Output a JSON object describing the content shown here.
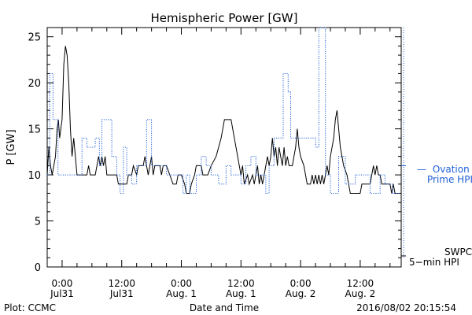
{
  "chart_data": {
    "type": "line",
    "title": "Hemispheric Power [GW]",
    "ylabel": "P [GW]",
    "xlabel": "Date and Time",
    "ylim": [
      0,
      26
    ],
    "xlim": [
      "2016-07-30 21:00",
      "2016-08-02 20:15"
    ],
    "grid": false,
    "y_ticks": [
      0,
      5,
      10,
      15,
      20,
      25
    ],
    "x_ticks": [
      {
        "t": "2016-07-31 00:00",
        "line1": "0:00",
        "line2": "Jul31"
      },
      {
        "t": "2016-07-31 12:00",
        "line1": "12:00",
        "line2": "Jul31"
      },
      {
        "t": "2016-08-01 00:00",
        "line1": "0:00",
        "line2": "Aug. 1"
      },
      {
        "t": "2016-08-01 12:00",
        "line1": "12:00",
        "line2": "Aug. 1"
      },
      {
        "t": "2016-08-02 00:00",
        "line1": "0:00",
        "line2": "Aug. 2"
      },
      {
        "t": "2016-08-02 12:00",
        "line1": "12:00",
        "line2": "Aug. 2"
      }
    ],
    "series": [
      {
        "name": "SWPC 5-min HPI",
        "color": "#000000",
        "style": "solid",
        "points": [
          [
            "2016-07-30 21:00",
            10
          ],
          [
            "2016-07-30 21:20",
            13
          ],
          [
            "2016-07-30 21:40",
            11
          ],
          [
            "2016-07-30 22:00",
            10
          ],
          [
            "2016-07-30 22:40",
            12
          ],
          [
            "2016-07-30 23:00",
            15
          ],
          [
            "2016-07-30 23:15",
            16
          ],
          [
            "2016-07-30 23:30",
            14
          ],
          [
            "2016-07-31 00:00",
            16
          ],
          [
            "2016-07-31 00:20",
            22
          ],
          [
            "2016-07-31 00:40",
            24
          ],
          [
            "2016-07-31 01:00",
            23
          ],
          [
            "2016-07-31 01:20",
            20
          ],
          [
            "2016-07-31 01:40",
            15
          ],
          [
            "2016-07-31 02:00",
            12
          ],
          [
            "2016-07-31 02:20",
            14
          ],
          [
            "2016-07-31 02:40",
            12
          ],
          [
            "2016-07-31 03:00",
            10
          ],
          [
            "2016-07-31 05:00",
            10
          ],
          [
            "2016-07-31 05:20",
            11
          ],
          [
            "2016-07-31 05:40",
            10
          ],
          [
            "2016-07-31 06:40",
            10
          ],
          [
            "2016-07-31 07:00",
            11
          ],
          [
            "2016-07-31 07:20",
            12
          ],
          [
            "2016-07-31 07:40",
            11
          ],
          [
            "2016-07-31 08:00",
            12
          ],
          [
            "2016-07-31 08:20",
            11
          ],
          [
            "2016-07-31 08:40",
            12
          ],
          [
            "2016-07-31 09:00",
            10
          ],
          [
            "2016-07-31 11:00",
            10
          ],
          [
            "2016-07-31 11:20",
            9
          ],
          [
            "2016-07-31 13:00",
            9
          ],
          [
            "2016-07-31 13:20",
            10
          ],
          [
            "2016-07-31 14:00",
            10
          ],
          [
            "2016-07-31 14:20",
            11
          ],
          [
            "2016-07-31 15:00",
            10
          ],
          [
            "2016-07-31 15:20",
            11
          ],
          [
            "2016-07-31 16:20",
            11
          ],
          [
            "2016-07-31 16:40",
            12
          ],
          [
            "2016-07-31 17:00",
            11
          ],
          [
            "2016-07-31 17:20",
            10
          ],
          [
            "2016-07-31 17:40",
            11
          ],
          [
            "2016-07-31 18:00",
            12
          ],
          [
            "2016-07-31 18:20",
            10
          ],
          [
            "2016-07-31 18:40",
            11
          ],
          [
            "2016-07-31 19:40",
            11
          ],
          [
            "2016-07-31 20:00",
            10
          ],
          [
            "2016-07-31 20:20",
            11
          ],
          [
            "2016-07-31 21:00",
            11
          ],
          [
            "2016-07-31 21:40",
            10
          ],
          [
            "2016-07-31 22:20",
            9
          ],
          [
            "2016-07-31 23:00",
            9
          ],
          [
            "2016-07-31 23:20",
            10
          ],
          [
            "2016-08-01 00:00",
            10
          ],
          [
            "2016-08-01 00:40",
            9
          ],
          [
            "2016-08-01 01:00",
            8
          ],
          [
            "2016-08-01 01:40",
            8
          ],
          [
            "2016-08-01 02:00",
            9
          ],
          [
            "2016-08-01 02:40",
            10
          ],
          [
            "2016-08-01 03:00",
            11
          ],
          [
            "2016-08-01 04:00",
            11
          ],
          [
            "2016-08-01 04:20",
            10
          ],
          [
            "2016-08-01 05:20",
            10
          ],
          [
            "2016-08-01 06:00",
            11
          ],
          [
            "2016-08-01 07:00",
            12
          ],
          [
            "2016-08-01 08:00",
            14
          ],
          [
            "2016-08-01 08:40",
            16
          ],
          [
            "2016-08-01 10:00",
            16
          ],
          [
            "2016-08-01 10:40",
            14
          ],
          [
            "2016-08-01 11:20",
            12
          ],
          [
            "2016-08-01 12:00",
            10
          ],
          [
            "2016-08-01 12:20",
            11
          ],
          [
            "2016-08-01 12:40",
            9
          ],
          [
            "2016-08-01 13:20",
            10
          ],
          [
            "2016-08-01 13:40",
            9
          ],
          [
            "2016-08-01 14:20",
            10
          ],
          [
            "2016-08-01 14:40",
            9
          ],
          [
            "2016-08-01 15:00",
            10
          ],
          [
            "2016-08-01 15:20",
            11
          ],
          [
            "2016-08-01 15:40",
            9
          ],
          [
            "2016-08-01 16:00",
            10
          ],
          [
            "2016-08-01 16:20",
            9
          ],
          [
            "2016-08-01 16:40",
            10
          ],
          [
            "2016-08-01 17:00",
            11
          ],
          [
            "2016-08-01 17:20",
            12
          ],
          [
            "2016-08-01 17:40",
            11
          ],
          [
            "2016-08-01 18:00",
            12
          ],
          [
            "2016-08-01 18:20",
            14
          ],
          [
            "2016-08-01 18:40",
            12
          ],
          [
            "2016-08-01 19:00",
            13
          ],
          [
            "2016-08-01 19:20",
            11
          ],
          [
            "2016-08-01 19:40",
            13
          ],
          [
            "2016-08-01 20:00",
            12
          ],
          [
            "2016-08-01 20:20",
            11
          ],
          [
            "2016-08-01 20:40",
            13
          ],
          [
            "2016-08-01 21:00",
            11
          ],
          [
            "2016-08-01 21:20",
            12
          ],
          [
            "2016-08-01 21:40",
            11
          ],
          [
            "2016-08-01 22:20",
            11
          ],
          [
            "2016-08-01 23:00",
            13
          ],
          [
            "2016-08-01 23:20",
            15
          ],
          [
            "2016-08-01 23:40",
            13
          ],
          [
            "2016-08-02 00:00",
            12
          ],
          [
            "2016-08-02 00:40",
            11
          ],
          [
            "2016-08-02 01:00",
            10
          ],
          [
            "2016-08-02 01:20",
            9
          ],
          [
            "2016-08-02 02:00",
            9
          ],
          [
            "2016-08-02 02:20",
            10
          ],
          [
            "2016-08-02 02:40",
            9
          ],
          [
            "2016-08-02 03:00",
            10
          ],
          [
            "2016-08-02 03:20",
            9
          ],
          [
            "2016-08-02 03:40",
            10
          ],
          [
            "2016-08-02 04:00",
            9
          ],
          [
            "2016-08-02 04:20",
            10
          ],
          [
            "2016-08-02 04:40",
            9
          ],
          [
            "2016-08-02 05:00",
            10
          ],
          [
            "2016-08-02 05:20",
            11
          ],
          [
            "2016-08-02 05:40",
            10
          ],
          [
            "2016-08-02 06:00",
            12
          ],
          [
            "2016-08-02 06:40",
            14
          ],
          [
            "2016-08-02 07:00",
            16
          ],
          [
            "2016-08-02 07:20",
            17
          ],
          [
            "2016-08-02 07:40",
            15
          ],
          [
            "2016-08-02 08:00",
            13
          ],
          [
            "2016-08-02 08:40",
            11
          ],
          [
            "2016-08-02 09:20",
            10
          ],
          [
            "2016-08-02 09:40",
            9
          ],
          [
            "2016-08-02 10:00",
            8
          ],
          [
            "2016-08-02 12:00",
            8
          ],
          [
            "2016-08-02 12:20",
            9
          ],
          [
            "2016-08-02 14:00",
            9
          ],
          [
            "2016-08-02 14:20",
            10
          ],
          [
            "2016-08-02 14:40",
            11
          ],
          [
            "2016-08-02 15:00",
            10
          ],
          [
            "2016-08-02 15:20",
            11
          ],
          [
            "2016-08-02 15:40",
            10
          ],
          [
            "2016-08-02 16:00",
            10
          ],
          [
            "2016-08-02 16:20",
            9
          ],
          [
            "2016-08-02 18:00",
            9
          ],
          [
            "2016-08-02 18:20",
            8
          ],
          [
            "2016-08-02 18:40",
            9
          ],
          [
            "2016-08-02 19:00",
            8
          ],
          [
            "2016-08-02 19:40",
            8
          ],
          [
            "2016-08-02 20:00",
            8
          ]
        ]
      },
      {
        "name": "Ovation Prime HPI",
        "color": "#1f5fd8",
        "style": "dotted",
        "points": [
          [
            "2016-07-30 21:00",
            10
          ],
          [
            "2016-07-30 21:30",
            10
          ],
          [
            "2016-07-30 21:30",
            21
          ],
          [
            "2016-07-30 22:10",
            21
          ],
          [
            "2016-07-30 22:10",
            16
          ],
          [
            "2016-07-30 23:10",
            16
          ],
          [
            "2016-07-30 23:10",
            10
          ],
          [
            "2016-07-31 04:00",
            10
          ],
          [
            "2016-07-31 04:00",
            14
          ],
          [
            "2016-07-31 05:00",
            14
          ],
          [
            "2016-07-31 05:00",
            13
          ],
          [
            "2016-07-31 06:40",
            13
          ],
          [
            "2016-07-31 06:40",
            14
          ],
          [
            "2016-07-31 07:30",
            14
          ],
          [
            "2016-07-31 07:30",
            11
          ],
          [
            "2016-07-31 08:00",
            11
          ],
          [
            "2016-07-31 08:00",
            16
          ],
          [
            "2016-07-31 10:00",
            16
          ],
          [
            "2016-07-31 10:00",
            12
          ],
          [
            "2016-07-31 11:00",
            12
          ],
          [
            "2016-07-31 11:00",
            10
          ],
          [
            "2016-07-31 11:40",
            10
          ],
          [
            "2016-07-31 11:40",
            8
          ],
          [
            "2016-07-31 12:20",
            8
          ],
          [
            "2016-07-31 12:20",
            13
          ],
          [
            "2016-07-31 13:00",
            13
          ],
          [
            "2016-07-31 13:00",
            10
          ],
          [
            "2016-07-31 14:00",
            10
          ],
          [
            "2016-07-31 14:00",
            9
          ],
          [
            "2016-07-31 15:00",
            9
          ],
          [
            "2016-07-31 15:00",
            11
          ],
          [
            "2016-07-31 17:00",
            11
          ],
          [
            "2016-07-31 17:00",
            16
          ],
          [
            "2016-07-31 18:00",
            16
          ],
          [
            "2016-07-31 18:00",
            11
          ],
          [
            "2016-07-31 21:00",
            11
          ],
          [
            "2016-07-31 21:00",
            10
          ],
          [
            "2016-08-01 00:20",
            10
          ],
          [
            "2016-08-01 00:20",
            8
          ],
          [
            "2016-08-01 01:00",
            8
          ],
          [
            "2016-08-01 01:00",
            10
          ],
          [
            "2016-08-01 01:40",
            10
          ],
          [
            "2016-08-01 01:40",
            8
          ],
          [
            "2016-08-01 03:00",
            8
          ],
          [
            "2016-08-01 03:00",
            10
          ],
          [
            "2016-08-01 04:00",
            10
          ],
          [
            "2016-08-01 04:00",
            12
          ],
          [
            "2016-08-01 05:00",
            12
          ],
          [
            "2016-08-01 05:00",
            11
          ],
          [
            "2016-08-01 06:00",
            11
          ],
          [
            "2016-08-01 06:00",
            10
          ],
          [
            "2016-08-01 07:30",
            10
          ],
          [
            "2016-08-01 07:30",
            9
          ],
          [
            "2016-08-01 09:00",
            9
          ],
          [
            "2016-08-01 09:00",
            11
          ],
          [
            "2016-08-01 10:00",
            11
          ],
          [
            "2016-08-01 10:00",
            10
          ],
          [
            "2016-08-01 12:00",
            10
          ],
          [
            "2016-08-01 12:00",
            9
          ],
          [
            "2016-08-01 13:00",
            9
          ],
          [
            "2016-08-01 13:00",
            11
          ],
          [
            "2016-08-01 14:00",
            11
          ],
          [
            "2016-08-01 14:00",
            12
          ],
          [
            "2016-08-01 15:00",
            12
          ],
          [
            "2016-08-01 15:00",
            10
          ],
          [
            "2016-08-01 17:00",
            10
          ],
          [
            "2016-08-01 17:00",
            8
          ],
          [
            "2016-08-01 17:40",
            8
          ],
          [
            "2016-08-01 17:40",
            11
          ],
          [
            "2016-08-01 18:40",
            11
          ],
          [
            "2016-08-01 18:40",
            14
          ],
          [
            "2016-08-01 20:30",
            14
          ],
          [
            "2016-08-01 20:30",
            21
          ],
          [
            "2016-08-01 21:30",
            21
          ],
          [
            "2016-08-01 21:30",
            19
          ],
          [
            "2016-08-01 22:00",
            19
          ],
          [
            "2016-08-01 22:00",
            14
          ],
          [
            "2016-08-02 03:00",
            14
          ],
          [
            "2016-08-02 03:00",
            13
          ],
          [
            "2016-08-02 03:40",
            13
          ],
          [
            "2016-08-02 03:40",
            26
          ],
          [
            "2016-08-02 05:00",
            26
          ],
          [
            "2016-08-02 05:00",
            10
          ],
          [
            "2016-08-02 06:00",
            10
          ],
          [
            "2016-08-02 06:00",
            8
          ],
          [
            "2016-08-02 07:40",
            8
          ],
          [
            "2016-08-02 07:40",
            12
          ],
          [
            "2016-08-02 09:00",
            12
          ],
          [
            "2016-08-02 09:00",
            9
          ],
          [
            "2016-08-02 11:00",
            9
          ],
          [
            "2016-08-02 11:00",
            10
          ],
          [
            "2016-08-02 14:00",
            10
          ],
          [
            "2016-08-02 14:00",
            8
          ],
          [
            "2016-08-02 16:00",
            8
          ],
          [
            "2016-08-02 16:00",
            10
          ],
          [
            "2016-08-02 17:00",
            10
          ],
          [
            "2016-08-02 17:00",
            9
          ],
          [
            "2016-08-02 18:30",
            9
          ],
          [
            "2016-08-02 18:30",
            8
          ],
          [
            "2016-08-02 20:00",
            8
          ]
        ]
      }
    ],
    "legend": {
      "ovation": {
        "dash": "—",
        "line1": "Ovation",
        "line2": "Prime HPI",
        "value": 11
      },
      "swpc": {
        "line1": "SWPC",
        "line2": "5−min HPI",
        "value": 1.2
      }
    }
  },
  "footer": {
    "plot_credit": "Plot: CCMC",
    "timestamp": "2016/08/02 20:15:54"
  }
}
